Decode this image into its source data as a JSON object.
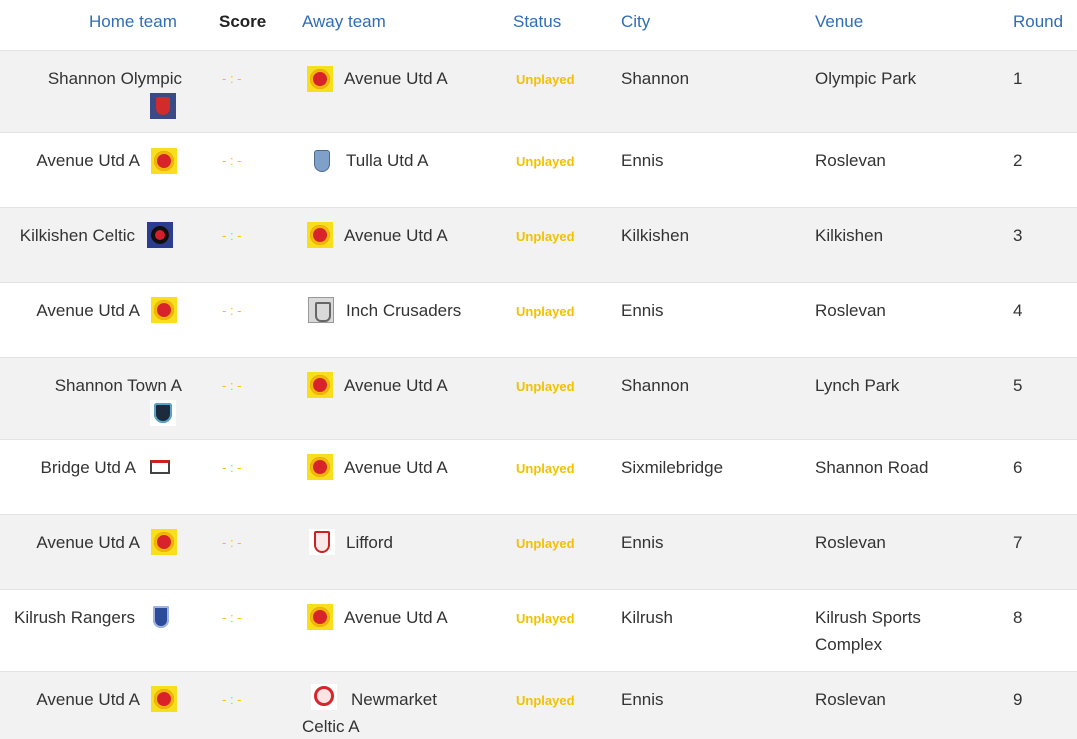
{
  "headers": {
    "home": "Home team",
    "score": "Score",
    "away": "Away team",
    "status": "Status",
    "city": "City",
    "venue": "Venue",
    "round": "Round"
  },
  "colors": {
    "header_link": "#2f6db7",
    "status_unplayed": "#f2c200",
    "row_alt_bg": "#f2f2f2"
  },
  "fixtures": [
    {
      "home": "Shannon Olympic",
      "home_logo": "shannon-olympic-crest-icon",
      "score": "- : -",
      "away": "Avenue Utd A",
      "away_logo": "avenue-utd-crest-icon",
      "status": "Unplayed",
      "city": "Shannon",
      "venue": "Olympic Park",
      "round": "1"
    },
    {
      "home": "Avenue Utd A",
      "home_logo": "avenue-utd-crest-icon",
      "score": "- : -",
      "away": "Tulla Utd A",
      "away_logo": "tulla-utd-crest-icon",
      "status": "Unplayed",
      "city": "Ennis",
      "venue": "Roslevan",
      "round": "2"
    },
    {
      "home": "Kilkishen Celtic",
      "home_logo": "kilkishen-celtic-crest-icon",
      "score": "- : -",
      "away": "Avenue Utd A",
      "away_logo": "avenue-utd-crest-icon",
      "status": "Unplayed",
      "city": "Kilkishen",
      "venue": "Kilkishen",
      "round": "3"
    },
    {
      "home": "Avenue Utd A",
      "home_logo": "avenue-utd-crest-icon",
      "score": "- : -",
      "away": "Inch Crusaders",
      "away_logo": "inch-crusaders-crest-icon",
      "status": "Unplayed",
      "city": "Ennis",
      "venue": "Roslevan",
      "round": "4"
    },
    {
      "home": "Shannon Town A",
      "home_logo": "shannon-town-crest-icon",
      "score": "- : -",
      "away": "Avenue Utd A",
      "away_logo": "avenue-utd-crest-icon",
      "status": "Unplayed",
      "city": "Shannon",
      "venue": "Lynch Park",
      "round": "5"
    },
    {
      "home": "Bridge Utd A",
      "home_logo": "bridge-utd-crest-icon",
      "score": "- : -",
      "away": "Avenue Utd A",
      "away_logo": "avenue-utd-crest-icon",
      "status": "Unplayed",
      "city": "Sixmilebridge",
      "venue": "Shannon Road",
      "round": "6"
    },
    {
      "home": "Avenue Utd A",
      "home_logo": "avenue-utd-crest-icon",
      "score": "- : -",
      "away": "Lifford",
      "away_logo": "lifford-crest-icon",
      "status": "Unplayed",
      "city": "Ennis",
      "venue": "Roslevan",
      "round": "7"
    },
    {
      "home": "Kilrush Rangers",
      "home_logo": "kilrush-rangers-crest-icon",
      "score": "- : -",
      "away": "Avenue Utd A",
      "away_logo": "avenue-utd-crest-icon",
      "status": "Unplayed",
      "city": "Kilrush",
      "venue": "Kilrush Sports",
      "venue_line2": "Complex",
      "round": "8"
    },
    {
      "home": "Avenue Utd A",
      "home_logo": "avenue-utd-crest-icon",
      "score": "- : -",
      "away": "Newmarket",
      "away_line2": "Celtic A",
      "away_logo": "newmarket-celtic-crest-icon",
      "status": "Unplayed",
      "city": "Ennis",
      "venue": "Roslevan",
      "round": "9"
    }
  ]
}
